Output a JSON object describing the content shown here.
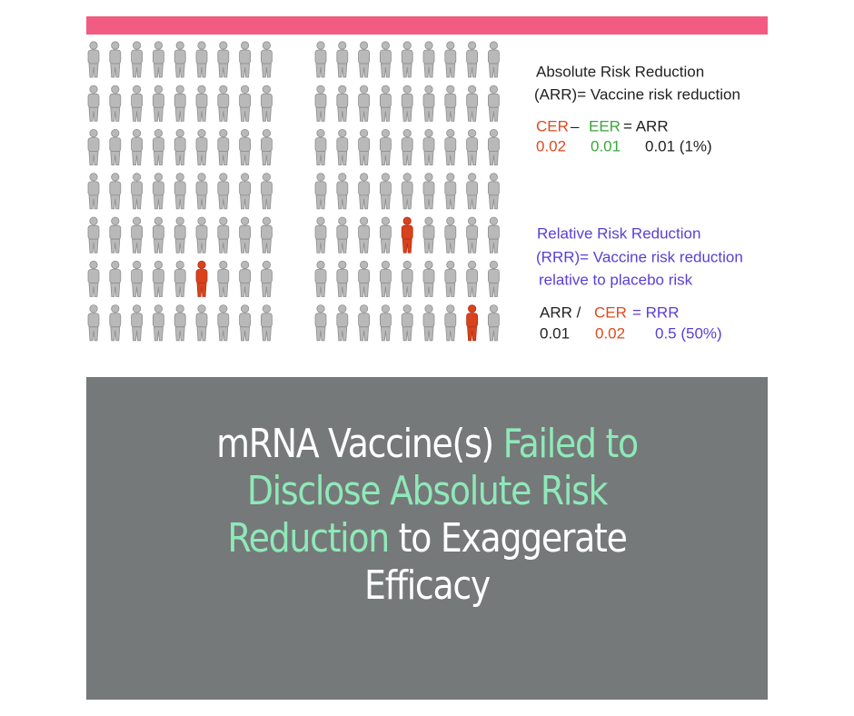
{
  "arr_block": {
    "title": "Absolute Risk Reduction",
    "definition": "(ARR)= Vaccine risk reduction",
    "formula": [
      {
        "text": "CER",
        "color": "#df4a20"
      },
      {
        "text": "–",
        "color": "#222222"
      },
      {
        "text": "EER",
        "color": "#3aa83a"
      },
      {
        "text": "= ARR",
        "color": "#222222"
      }
    ],
    "values": [
      {
        "text": "0.02",
        "color": "#df4a20"
      },
      {
        "text": "0.01",
        "color": "#3aa83a"
      },
      {
        "text": "0.01 (1%)",
        "color": "#222222"
      }
    ]
  },
  "rrr_block": {
    "title": "Relative Risk Reduction",
    "definition": "(RRR)= Vaccine risk reduction",
    "definition_2": "relative to placebo risk",
    "color": "#5b3fd4",
    "formula": [
      {
        "text": "ARR /",
        "color": "#222222"
      },
      {
        "text": "CER",
        "color": "#df4a20"
      },
      {
        "text": "= RRR",
        "color": "#5b3fd4"
      }
    ],
    "values": [
      {
        "text": "0.01",
        "color": "#222222"
      },
      {
        "text": "0.02",
        "color": "#df4a20"
      },
      {
        "text": "0.5 (50%)",
        "color": "#5b3fd4"
      }
    ]
  },
  "headline": {
    "lines": [
      [
        {
          "text": "mRNA Vaccine(s) ",
          "highlight": false
        },
        {
          "text": "Failed to",
          "highlight": true
        }
      ],
      [
        {
          "text": "Disclose Absolute Risk",
          "highlight": true
        }
      ],
      [
        {
          "text": "Reduction",
          "highlight": true
        },
        {
          "text": " to Exaggerate",
          "highlight": false
        }
      ],
      [
        {
          "text": "Efficacy",
          "highlight": false
        }
      ]
    ]
  }
}
